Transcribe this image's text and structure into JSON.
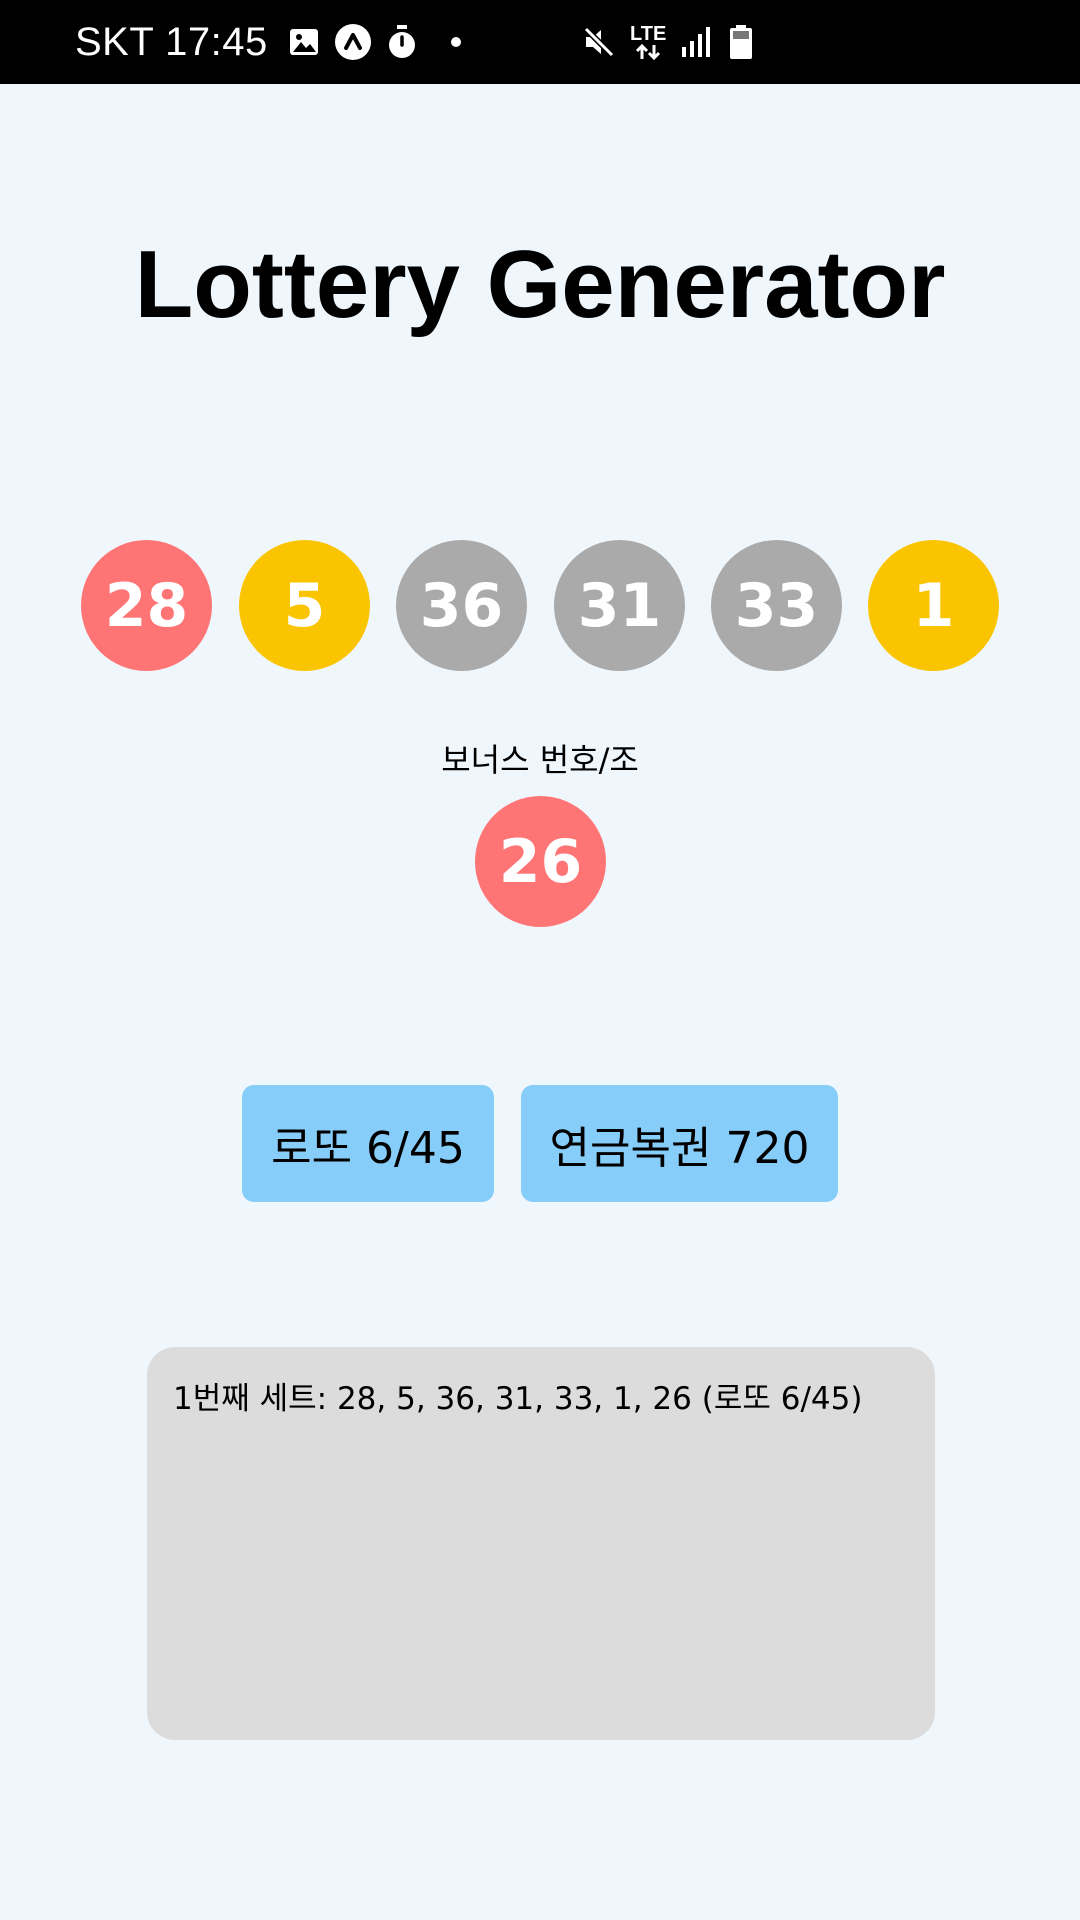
{
  "status_bar": {
    "carrier_time": "SKT 17:45",
    "network": "LTE",
    "icons": [
      "gallery-icon",
      "app-a-icon",
      "timer-icon",
      "dot-icon",
      "mute-icon",
      "lte-data-icon",
      "signal-icon",
      "battery-icon"
    ]
  },
  "app": {
    "title": "Lottery Generator"
  },
  "balls": [
    {
      "number": "28",
      "color": "#ff7474"
    },
    {
      "number": "5",
      "color": "#fbc400"
    },
    {
      "number": "36",
      "color": "#aaaaaa"
    },
    {
      "number": "31",
      "color": "#aaaaaa"
    },
    {
      "number": "33",
      "color": "#aaaaaa"
    },
    {
      "number": "1",
      "color": "#fbc400"
    }
  ],
  "bonus": {
    "label": "보너스 번호/조",
    "number": "26",
    "color": "#ff7474"
  },
  "buttons": {
    "lotto_label": "로또 6/45",
    "pension_label": "연금복권 720",
    "color": "#87cdf9"
  },
  "results": [
    "1번째 세트: 28, 5, 36, 31, 33, 1, 26 (로또 6/45)"
  ],
  "colors": {
    "background": "#eff7fd",
    "result_box": "#dcdcdc"
  }
}
